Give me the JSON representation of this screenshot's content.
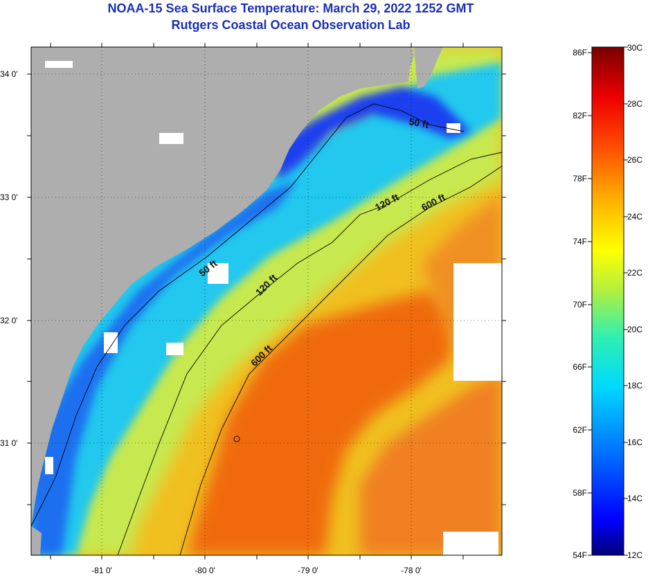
{
  "title": "NOAA-15 Sea Surface Temperature:  March 29, 2022 1252 GMT",
  "subtitle": "Rutgers Coastal Ocean Observation Lab",
  "map": {
    "lat_labels": [
      "34 0'",
      "33 0'",
      "32 0'",
      "31 0'"
    ],
    "lon_labels": [
      "-81 0'",
      "-80 0'",
      "-79 0'",
      "-78 0'"
    ],
    "contour_labels": [
      "50 ft",
      "120 ft",
      "600 ft",
      "50 ft",
      "120 ft",
      "600 ft"
    ],
    "colors": {
      "land": "#aeaeae",
      "cloud": "#ffffff",
      "nearshore": "#1a3cf0",
      "cool": "#18c8f0",
      "mid": "#c8f060",
      "warm": "#f0d020",
      "gulfstream": "#f05a10"
    }
  },
  "colorbar": {
    "f_labels": [
      "86F",
      "82F",
      "78F",
      "74F",
      "70F",
      "66F",
      "62F",
      "58F",
      "54F"
    ],
    "c_labels": [
      "30C",
      "28C",
      "26C",
      "24C",
      "22C",
      "20C",
      "18C",
      "16C",
      "14C",
      "12C"
    ],
    "f_range": [
      54,
      86
    ],
    "c_range": [
      12,
      30
    ]
  }
}
